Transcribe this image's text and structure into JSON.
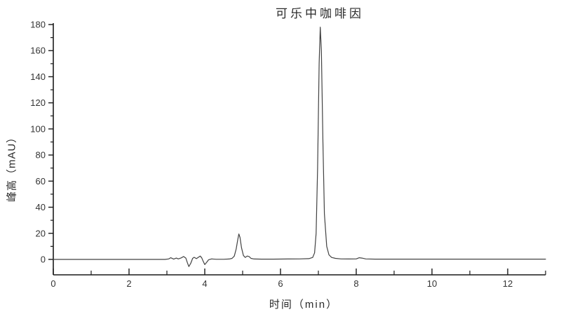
{
  "chart_data": {
    "type": "line",
    "title": "可乐中咖啡因",
    "xlabel": "时间（min）",
    "ylabel": "峰高（mAU）",
    "x_unit": "min",
    "y_unit": "mAU",
    "xlim": [
      0,
      13
    ],
    "ylim": [
      -12,
      182
    ],
    "x_major_ticks": [
      0,
      2,
      4,
      6,
      8,
      10,
      12
    ],
    "x_minor_ticks": [
      1,
      3,
      5,
      7,
      9,
      11,
      13
    ],
    "y_major_ticks": [
      0,
      20,
      40,
      60,
      80,
      100,
      120,
      140,
      160,
      180
    ],
    "y_minor_ticks": [
      10,
      30,
      50,
      70,
      90,
      110,
      130,
      150,
      170
    ],
    "grid": false,
    "legend": null,
    "axis_color": "#1a1a1a",
    "line_color": "#424242",
    "peaks": [
      {
        "name": "baseline-disturbance-1",
        "time_min": 3.58,
        "height_mau": -5.5
      },
      {
        "name": "baseline-disturbance-2",
        "time_min": 4.0,
        "height_mau": -4.0
      },
      {
        "name": "minor-peak",
        "time_min": 4.9,
        "height_mau": 19.5
      },
      {
        "name": "caffeine-main-peak",
        "time_min": 7.05,
        "height_mau": 178
      },
      {
        "name": "trace-bump",
        "time_min": 8.1,
        "height_mau": 1.3
      }
    ],
    "trace": [
      [
        0,
        0
      ],
      [
        0.5,
        0
      ],
      [
        1,
        0
      ],
      [
        1.5,
        0
      ],
      [
        2,
        0
      ],
      [
        2.5,
        0
      ],
      [
        2.95,
        0
      ],
      [
        3.05,
        0.4
      ],
      [
        3.1,
        1.3
      ],
      [
        3.18,
        0.2
      ],
      [
        3.25,
        1.0
      ],
      [
        3.3,
        0.4
      ],
      [
        3.38,
        1.2
      ],
      [
        3.44,
        2.2
      ],
      [
        3.5,
        1.0
      ],
      [
        3.54,
        -2.5
      ],
      [
        3.58,
        -5.5
      ],
      [
        3.63,
        -3.0
      ],
      [
        3.68,
        0.8
      ],
      [
        3.72,
        1.6
      ],
      [
        3.78,
        0.6
      ],
      [
        3.82,
        1.4
      ],
      [
        3.88,
        2.6
      ],
      [
        3.92,
        1.2
      ],
      [
        3.96,
        -1.5
      ],
      [
        4.0,
        -4.0
      ],
      [
        4.05,
        -2.2
      ],
      [
        4.1,
        -0.3
      ],
      [
        4.18,
        0.4
      ],
      [
        4.3,
        0.1
      ],
      [
        4.5,
        0.1
      ],
      [
        4.65,
        0.3
      ],
      [
        4.72,
        0.8
      ],
      [
        4.78,
        2.5
      ],
      [
        4.83,
        8
      ],
      [
        4.87,
        15
      ],
      [
        4.9,
        19.5
      ],
      [
        4.93,
        17
      ],
      [
        4.97,
        9
      ],
      [
        5.02,
        3.0
      ],
      [
        5.07,
        1.5
      ],
      [
        5.12,
        2.6
      ],
      [
        5.17,
        2.2
      ],
      [
        5.22,
        0.8
      ],
      [
        5.3,
        0.3
      ],
      [
        5.5,
        0.2
      ],
      [
        5.8,
        0.2
      ],
      [
        6.2,
        0.3
      ],
      [
        6.5,
        0.4
      ],
      [
        6.75,
        0.6
      ],
      [
        6.85,
        1.5
      ],
      [
        6.9,
        5
      ],
      [
        6.94,
        20
      ],
      [
        6.98,
        70
      ],
      [
        7.02,
        150
      ],
      [
        7.05,
        178
      ],
      [
        7.08,
        160
      ],
      [
        7.12,
        90
      ],
      [
        7.16,
        35
      ],
      [
        7.22,
        10
      ],
      [
        7.28,
        3.5
      ],
      [
        7.35,
        1.5
      ],
      [
        7.45,
        0.8
      ],
      [
        7.6,
        0.4
      ],
      [
        7.8,
        0.3
      ],
      [
        8.0,
        0.4
      ],
      [
        8.08,
        1.3
      ],
      [
        8.15,
        1.0
      ],
      [
        8.25,
        0.4
      ],
      [
        8.5,
        0.2
      ],
      [
        9,
        0.2
      ],
      [
        9.5,
        0.2
      ],
      [
        10,
        0.2
      ],
      [
        10.5,
        0.2
      ],
      [
        11,
        0.2
      ],
      [
        11.5,
        0.2
      ],
      [
        12,
        0.2
      ],
      [
        12.5,
        0.2
      ],
      [
        13,
        0.2
      ]
    ]
  }
}
